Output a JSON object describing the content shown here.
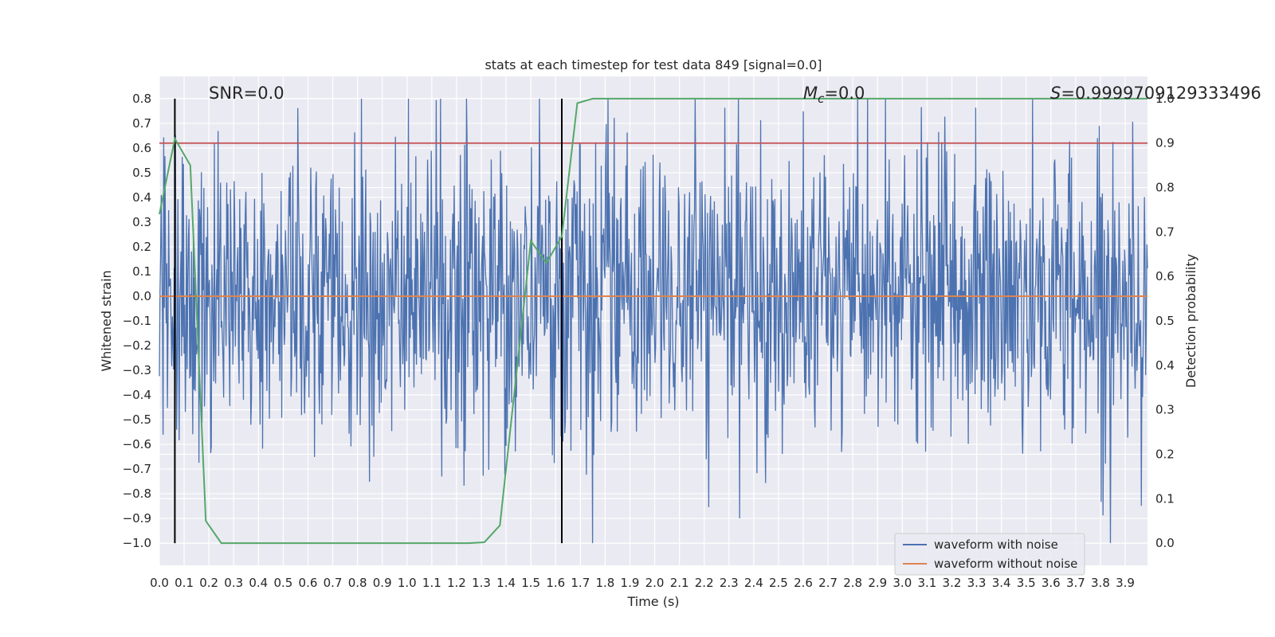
{
  "chart_data": {
    "type": "line",
    "title": "stats at each timestep for test data 849 [signal=0.0]",
    "xlabel": "Time (s)",
    "ylabel": "Whitened strain",
    "y2label": "Detection probability",
    "xlim": [
      0.0,
      3.99
    ],
    "ylim": [
      -1.09,
      0.89
    ],
    "y2lim": [
      -0.05,
      1.05
    ],
    "xticks": [
      "0.0",
      "0.1",
      "0.2",
      "0.3",
      "0.4",
      "0.5",
      "0.6",
      "0.7",
      "0.8",
      "0.9",
      "1.0",
      "1.1",
      "1.2",
      "1.3",
      "1.4",
      "1.5",
      "1.6",
      "1.7",
      "1.8",
      "1.9",
      "2.0",
      "2.1",
      "2.2",
      "2.3",
      "2.4",
      "2.5",
      "2.6",
      "2.7",
      "2.8",
      "2.9",
      "3.0",
      "3.1",
      "3.2",
      "3.3",
      "3.4",
      "3.5",
      "3.6",
      "3.7",
      "3.8",
      "3.9"
    ],
    "yticks": [
      "0.8",
      "0.7",
      "0.6",
      "0.5",
      "0.4",
      "0.3",
      "0.2",
      "0.1",
      "0.0",
      "−0.1",
      "−0.2",
      "−0.3",
      "−0.4",
      "−0.5",
      "−0.6",
      "−0.7",
      "−0.8",
      "−0.9",
      "−1.0"
    ],
    "y2ticks": [
      "1.0",
      "0.9",
      "0.8",
      "0.7",
      "0.6",
      "0.5",
      "0.4",
      "0.3",
      "0.2",
      "0.1",
      "0.0"
    ],
    "annotations": {
      "snr": "SNR=0.0",
      "mc_base": "M",
      "mc_sub": "c",
      "mc_value": "=0.0",
      "s_base": "S",
      "s_value": "=0.9999709129333496"
    },
    "grid": true,
    "legend_position": "lower-right",
    "series": [
      {
        "name": "waveform with noise",
        "color": "#4c72b0",
        "axis": "left",
        "x_range": [
          0.0,
          3.99
        ],
        "n_points": 1600,
        "amplitude_std": 0.3,
        "y_range": [
          -1.0,
          0.8
        ],
        "render": "dense_noise"
      },
      {
        "name": "waveform without noise",
        "color": "#dd8452",
        "axis": "left",
        "x": [
          0.0,
          3.99
        ],
        "y": [
          0.0,
          0.0
        ]
      },
      {
        "name": "Detection probability",
        "color": "#55a868",
        "axis": "right",
        "x": [
          0.0,
          0.0625,
          0.125,
          0.1875,
          0.25,
          0.3125,
          0.375,
          0.4375,
          0.5,
          0.5625,
          0.625,
          0.6875,
          0.75,
          0.8125,
          0.875,
          0.9375,
          1.0,
          1.0625,
          1.125,
          1.1875,
          1.25,
          1.3125,
          1.375,
          1.5,
          1.5625,
          1.625,
          1.6875,
          1.75,
          1.8125,
          2.0,
          2.5,
          3.0,
          3.5,
          3.99
        ],
        "y": [
          0.74,
          0.91,
          0.85,
          0.05,
          0.0,
          0.0,
          0.0,
          0.0,
          0.0,
          0.0,
          0.0,
          0.0,
          0.0,
          0.0,
          0.0,
          0.0,
          0.0,
          0.0,
          0.0,
          0.0,
          0.0,
          0.002,
          0.04,
          0.68,
          0.63,
          0.69,
          0.99,
          1.0,
          1.0,
          1.0,
          1.0,
          1.0,
          1.0,
          1.0
        ]
      }
    ],
    "threshold": {
      "axis": "right",
      "value": 0.9,
      "color": "#c44e52"
    },
    "vlines": {
      "x": [
        0.0625,
        1.625
      ],
      "color": "#000000",
      "y2_range": [
        0.0,
        1.0
      ]
    },
    "background": "#eaeaf2"
  }
}
